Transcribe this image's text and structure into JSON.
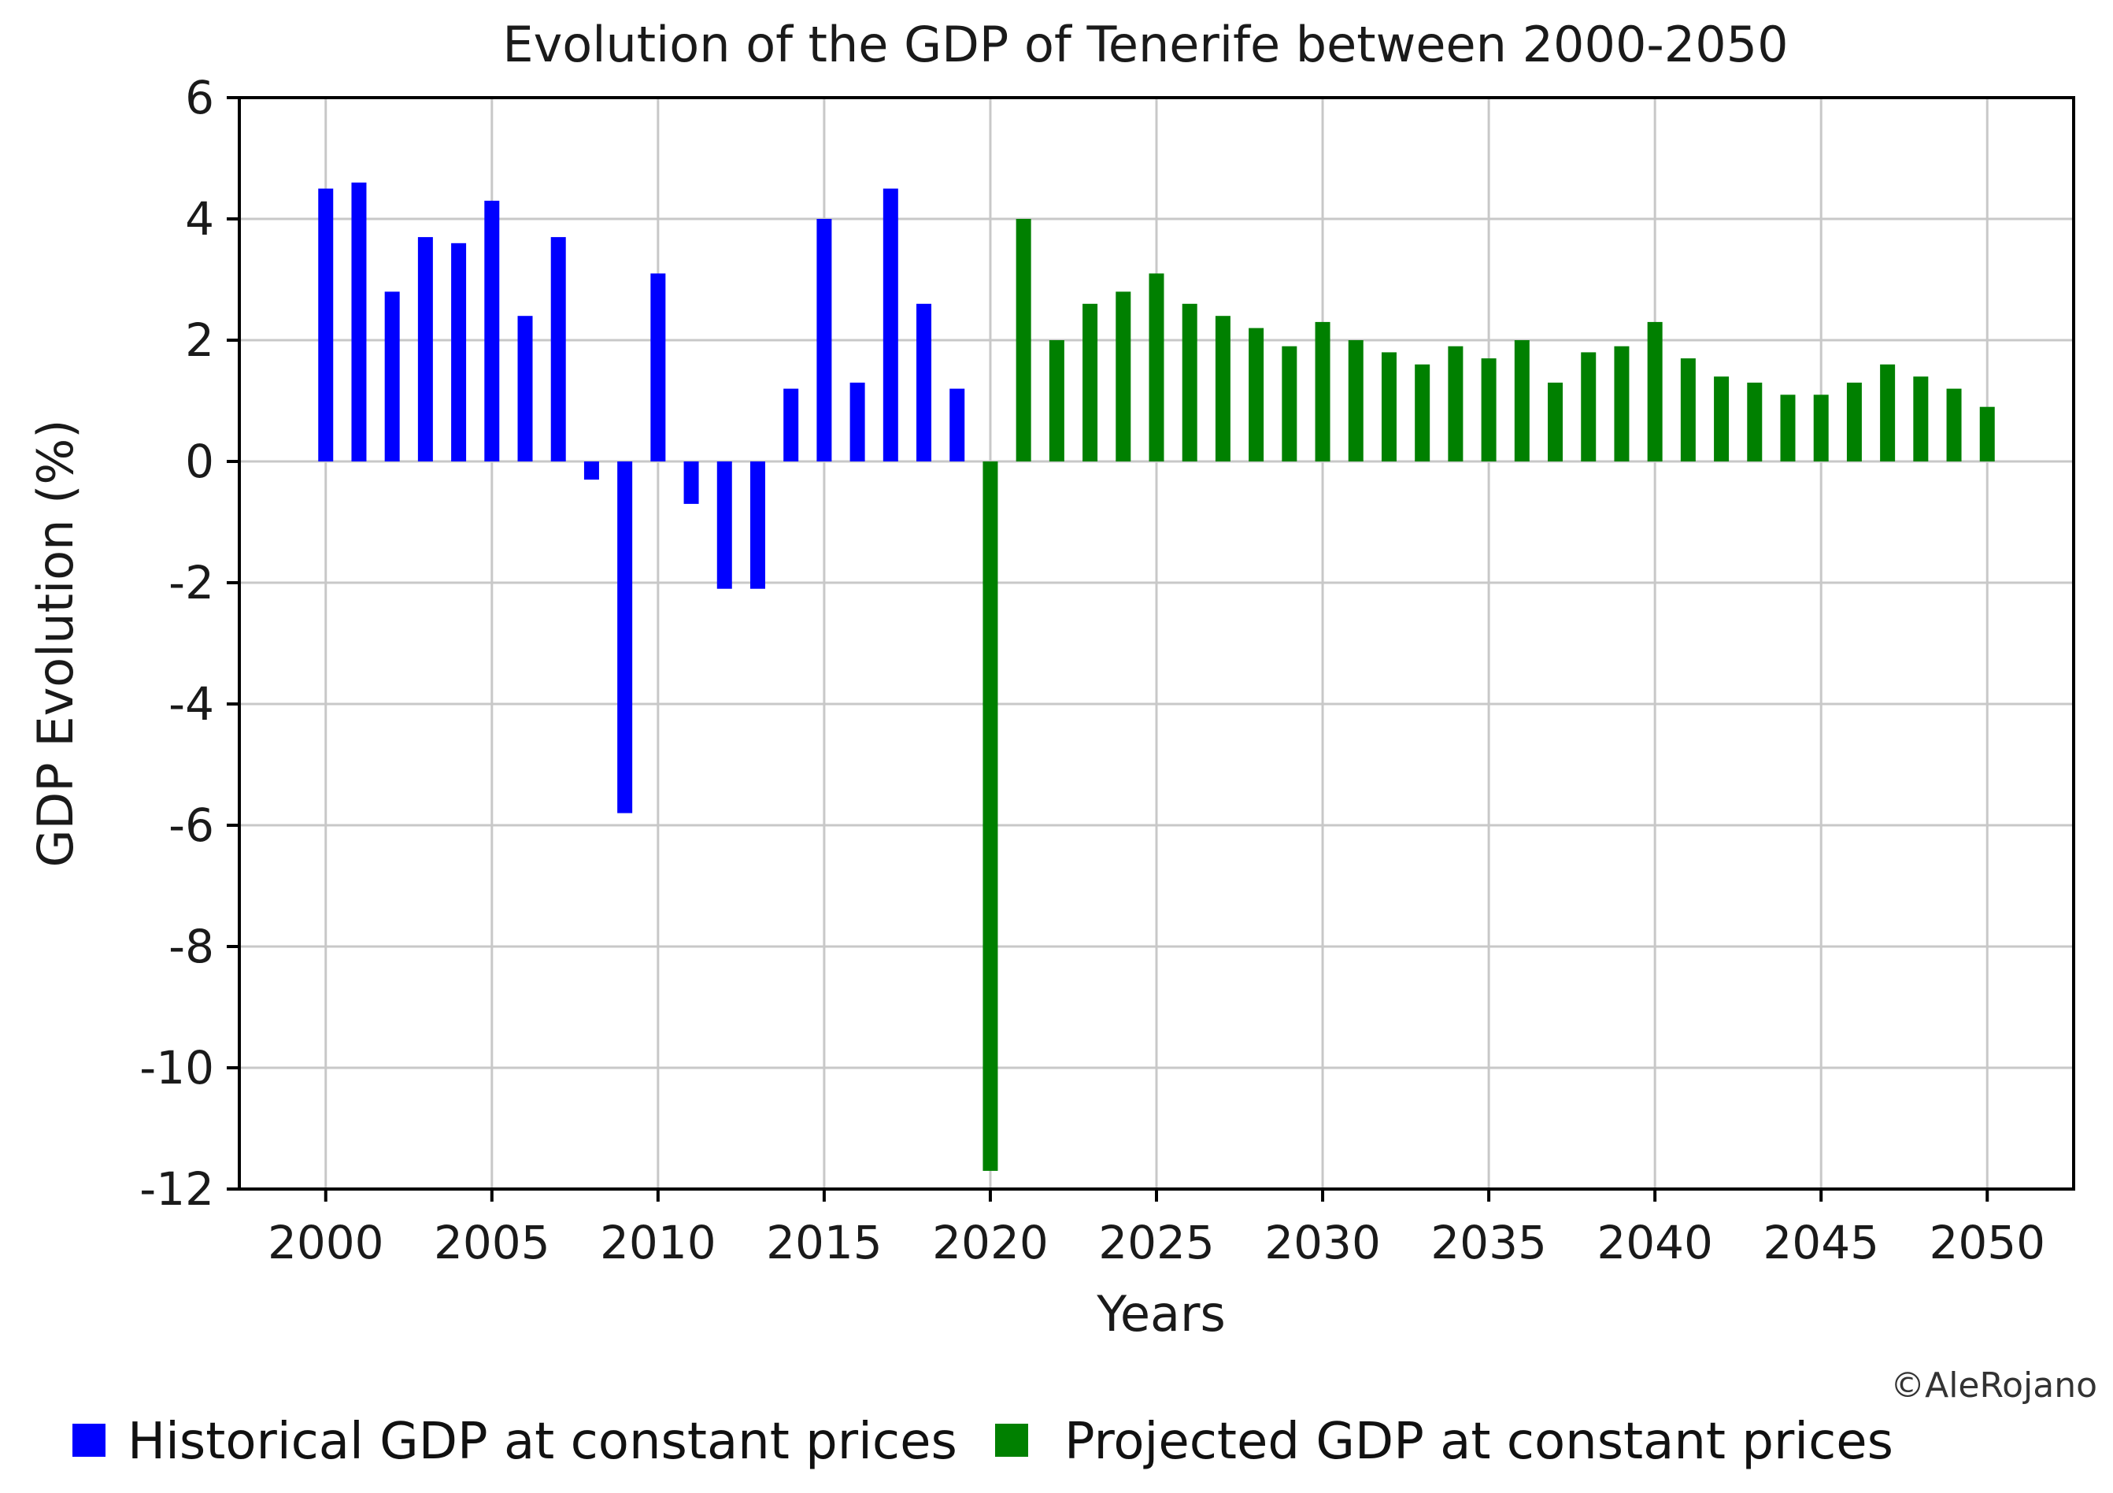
{
  "chart_data": {
    "type": "bar",
    "title": "Evolution of the GDP of Tenerife between 2000-2050",
    "xlabel": "Years",
    "ylabel": "GDP Evolution (%)",
    "xlim": [
      1997.4,
      2052.6
    ],
    "ylim": [
      -12,
      6
    ],
    "xticks": [
      2000,
      2005,
      2010,
      2015,
      2020,
      2025,
      2030,
      2035,
      2040,
      2045,
      2050
    ],
    "yticks": [
      6,
      4,
      2,
      0,
      -2,
      -4,
      -6,
      -8,
      -10,
      -12
    ],
    "grid": true,
    "credit": "©AleRojano",
    "legend_position": "bottom",
    "series": [
      {
        "name": "Historical GDP at constant prices",
        "color": "#0000ff",
        "x": [
          2000,
          2001,
          2002,
          2003,
          2004,
          2005,
          2006,
          2007,
          2008,
          2009,
          2010,
          2011,
          2012,
          2013,
          2014,
          2015,
          2016,
          2017,
          2018,
          2019
        ],
        "values": [
          4.5,
          4.6,
          2.8,
          3.7,
          3.6,
          4.3,
          2.4,
          3.7,
          -0.3,
          -5.8,
          3.1,
          -0.7,
          -2.1,
          -2.1,
          1.2,
          4.0,
          1.3,
          4.5,
          2.6,
          1.2
        ]
      },
      {
        "name": "Projected GDP at constant prices",
        "color": "#008000",
        "x": [
          2020,
          2021,
          2022,
          2023,
          2024,
          2025,
          2026,
          2027,
          2028,
          2029,
          2030,
          2031,
          2032,
          2033,
          2034,
          2035,
          2036,
          2037,
          2038,
          2039,
          2040,
          2041,
          2042,
          2043,
          2044,
          2045,
          2046,
          2047,
          2048,
          2049,
          2050
        ],
        "values": [
          -11.7,
          4.0,
          2.0,
          2.6,
          2.8,
          3.1,
          2.6,
          2.4,
          2.2,
          1.9,
          2.3,
          2.0,
          1.8,
          1.6,
          1.9,
          1.7,
          2.0,
          1.3,
          1.8,
          1.9,
          2.3,
          1.7,
          1.4,
          1.3,
          1.1,
          1.1,
          1.3,
          1.6,
          1.4,
          1.2,
          0.9
        ]
      }
    ]
  }
}
